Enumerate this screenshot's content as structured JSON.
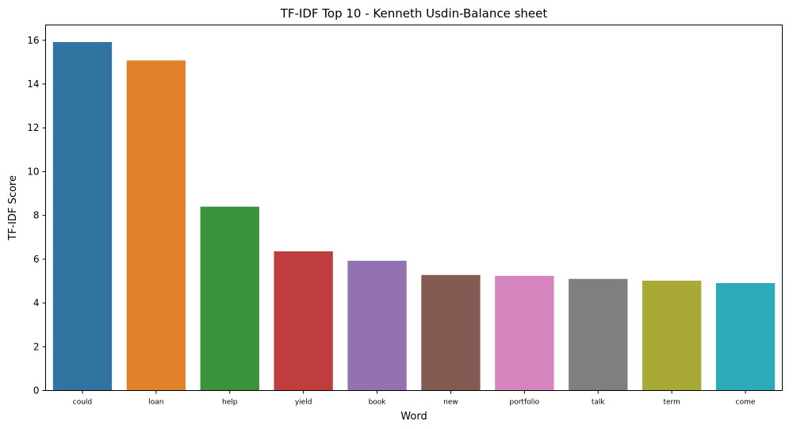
{
  "chart_data": {
    "type": "bar",
    "title": "TF-IDF Top 10 - Kenneth Usdin-Balance sheet",
    "xlabel": "Word",
    "ylabel": "TF-IDF Score",
    "categories": [
      "could",
      "loan",
      "help",
      "yield",
      "book",
      "new",
      "portfolio",
      "talk",
      "term",
      "come"
    ],
    "values": [
      15.92,
      15.08,
      8.4,
      6.36,
      5.93,
      5.28,
      5.24,
      5.1,
      5.02,
      4.91
    ],
    "colors": [
      "#3274a1",
      "#e1812c",
      "#3a923a",
      "#c03d3e",
      "#9372b2",
      "#845b53",
      "#d684bd",
      "#7f7f7f",
      "#a9aa35",
      "#2eabb8"
    ],
    "ylim": [
      0,
      16.7
    ],
    "yticks": [
      0,
      2,
      4,
      6,
      8,
      10,
      12,
      14,
      16
    ],
    "grid": false,
    "legend": "none"
  }
}
